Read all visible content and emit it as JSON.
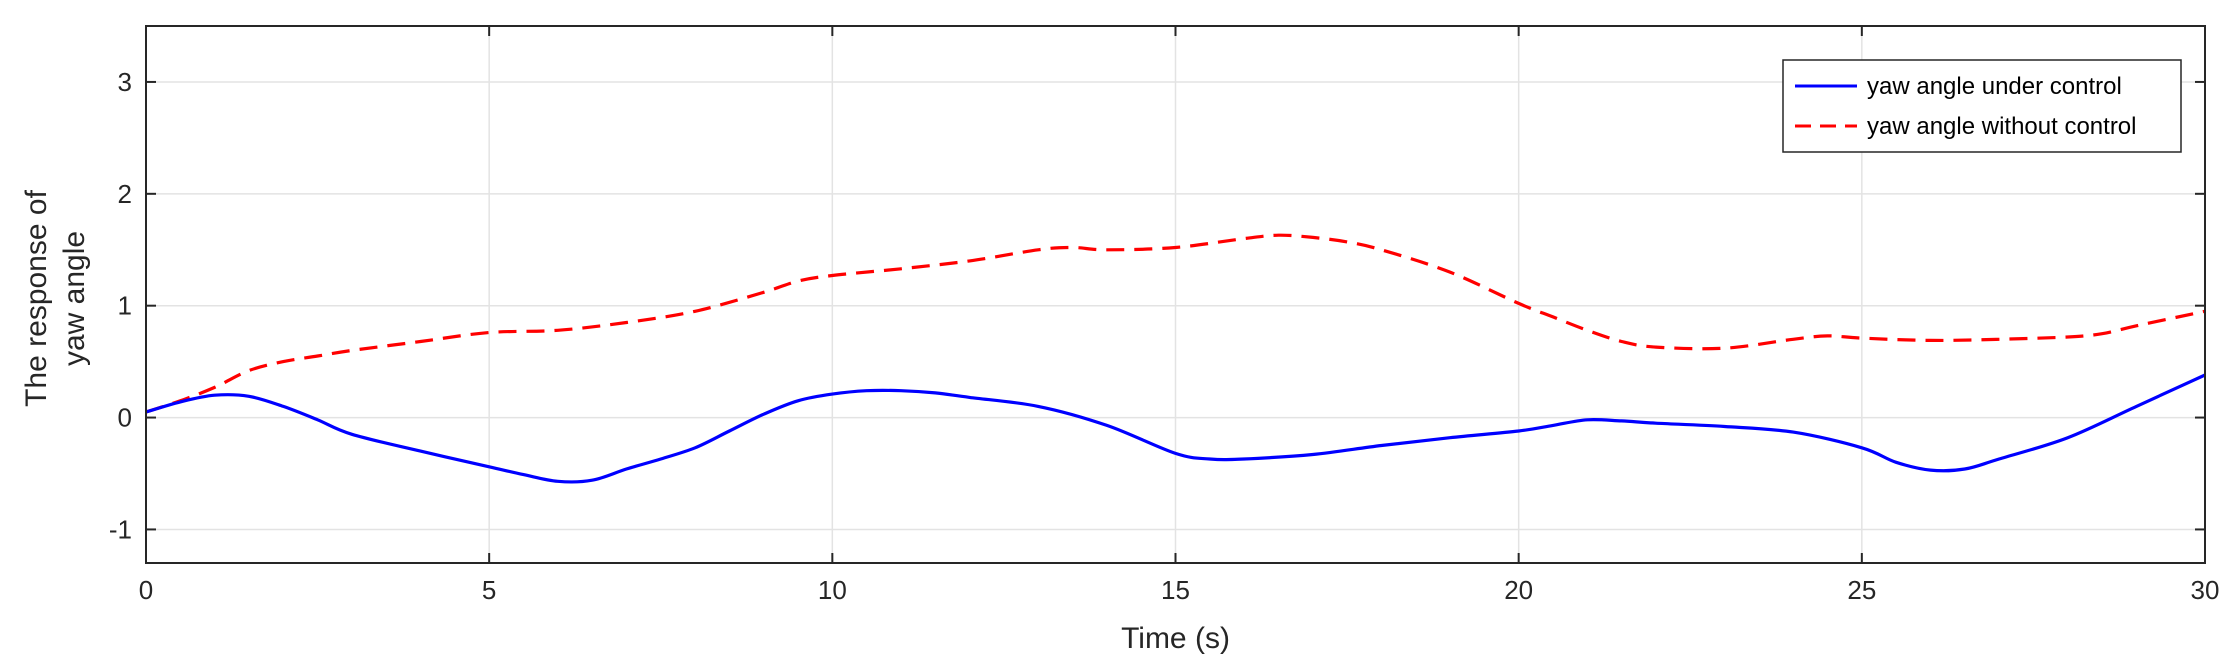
{
  "chart_data": {
    "type": "line",
    "title": "",
    "xlabel": "Time (s)",
    "ylabel_lines": [
      "The response of",
      "yaw angle"
    ],
    "xlim": [
      0,
      30
    ],
    "ylim": [
      -1.3,
      3.5
    ],
    "xticks": [
      0,
      5,
      10,
      15,
      20,
      25,
      30
    ],
    "yticks": [
      -1,
      0,
      1,
      2,
      3
    ],
    "grid": true,
    "legend_position": "top-right",
    "series": [
      {
        "name": "yaw angle under control",
        "color": "#0000ff",
        "style": "solid",
        "x": [
          0,
          0.5,
          1,
          1.5,
          2,
          2.5,
          3,
          4,
          5,
          5.5,
          6,
          6.5,
          7,
          7.5,
          8,
          8.5,
          9,
          9.5,
          10,
          10.5,
          11,
          11.5,
          12,
          13,
          14,
          15,
          15.5,
          16,
          17,
          18,
          19,
          20,
          20.5,
          21,
          21.5,
          22,
          23,
          24,
          25,
          25.5,
          26,
          26.5,
          27,
          28,
          29,
          30
        ],
        "y": [
          0.05,
          0.14,
          0.2,
          0.19,
          0.1,
          -0.02,
          -0.15,
          -0.3,
          -0.44,
          -0.51,
          -0.57,
          -0.56,
          -0.46,
          -0.37,
          -0.27,
          -0.12,
          0.03,
          0.15,
          0.21,
          0.24,
          0.24,
          0.22,
          0.18,
          0.1,
          -0.07,
          -0.32,
          -0.37,
          -0.37,
          -0.33,
          -0.25,
          -0.18,
          -0.12,
          -0.07,
          -0.02,
          -0.03,
          -0.05,
          -0.08,
          -0.13,
          -0.27,
          -0.4,
          -0.47,
          -0.46,
          -0.37,
          -0.18,
          0.1,
          0.38
        ]
      },
      {
        "name": "yaw angle without control",
        "color": "#ff0000",
        "style": "dashed",
        "x": [
          0,
          0.5,
          1,
          1.5,
          2,
          2.5,
          3,
          4,
          5,
          6,
          7,
          8,
          9,
          9.5,
          10,
          11,
          12,
          13,
          13.5,
          14,
          15,
          16,
          16.5,
          17,
          17.5,
          18,
          19,
          20,
          20.5,
          21,
          21.5,
          22,
          23,
          24,
          24.5,
          25,
          26,
          27,
          28,
          28.5,
          29,
          30
        ],
        "y": [
          0.05,
          0.15,
          0.27,
          0.42,
          0.5,
          0.55,
          0.6,
          0.68,
          0.76,
          0.78,
          0.85,
          0.95,
          1.12,
          1.22,
          1.27,
          1.33,
          1.4,
          1.5,
          1.52,
          1.5,
          1.52,
          1.6,
          1.63,
          1.61,
          1.57,
          1.5,
          1.3,
          1.02,
          0.9,
          0.78,
          0.68,
          0.63,
          0.62,
          0.7,
          0.73,
          0.71,
          0.69,
          0.7,
          0.72,
          0.75,
          0.82,
          0.95
        ]
      }
    ]
  }
}
